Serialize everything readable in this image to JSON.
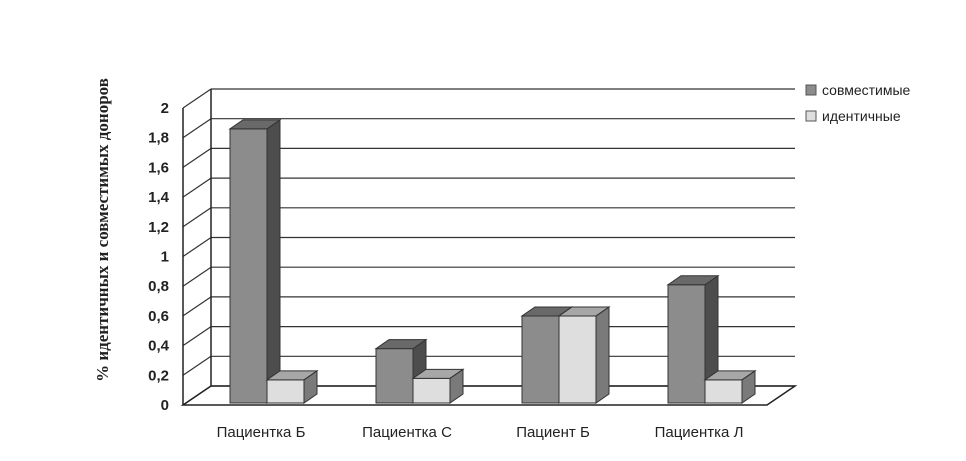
{
  "chart_data": {
    "type": "bar",
    "title": "",
    "xlabel": "",
    "ylabel": "% идентичных и совместимых доноров",
    "categories": [
      "Пациентка Б",
      "Пациентка С",
      "Пациент Б",
      "Пациентка Л"
    ],
    "series": [
      {
        "name": "совместимые",
        "values": [
          1.9,
          0.42,
          0.64,
          0.85
        ],
        "color": "#8c8c8c"
      },
      {
        "name": "идентичные",
        "values": [
          0.21,
          0.22,
          0.64,
          0.21
        ],
        "color": "#dedede"
      }
    ],
    "ylim": [
      0,
      2
    ],
    "yticks": [
      "0",
      "0,2",
      "0,4",
      "0,6",
      "0,8",
      "1",
      "1,2",
      "1,4",
      "1,6",
      "1,8",
      "2"
    ],
    "grid": true,
    "legend_position": "top-right",
    "style": "3d-clustered-column"
  }
}
